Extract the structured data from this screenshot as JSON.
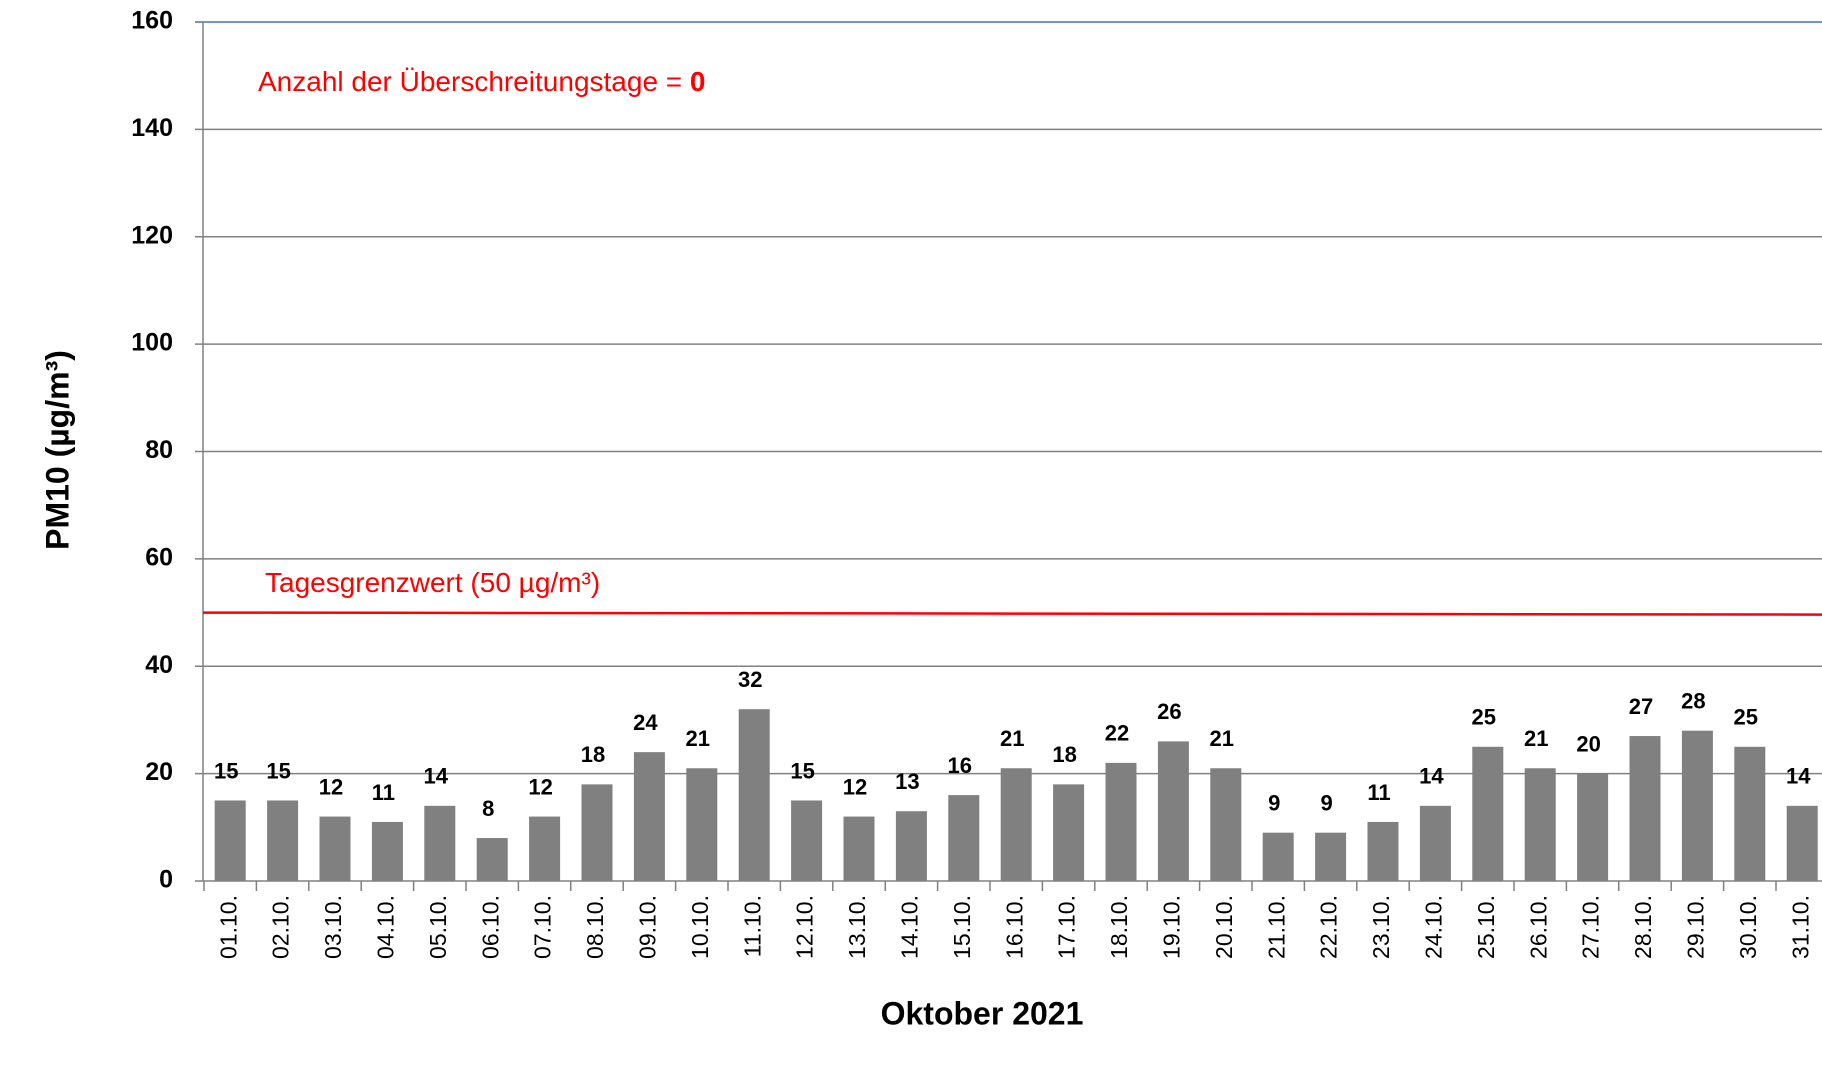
{
  "chart_data": {
    "type": "bar",
    "x_label": "Oktober 2021",
    "y_label": "PM10 (µg/m³)",
    "categories": [
      "01.10.",
      "02.10.",
      "03.10.",
      "04.10.",
      "05.10.",
      "06.10.",
      "07.10.",
      "08.10.",
      "09.10.",
      "10.10.",
      "11.10.",
      "12.10.",
      "13.10.",
      "14.10.",
      "15.10.",
      "16.10.",
      "17.10.",
      "18.10.",
      "19.10.",
      "20.10.",
      "21.10.",
      "22.10.",
      "23.10.",
      "24.10.",
      "25.10.",
      "26.10.",
      "27.10.",
      "28.10.",
      "29.10.",
      "30.10.",
      "31.10."
    ],
    "values": [
      15,
      15,
      12,
      11,
      14,
      8,
      12,
      18,
      24,
      21,
      32,
      15,
      12,
      13,
      16,
      21,
      18,
      22,
      26,
      21,
      9,
      9,
      11,
      14,
      25,
      21,
      20,
      27,
      28,
      25,
      14
    ],
    "color": "#808080",
    "ylim": [
      0,
      160
    ],
    "yticks": [
      0,
      20,
      40,
      60,
      80,
      100,
      120,
      140,
      160
    ],
    "grid": true,
    "threshold": {
      "value": 50,
      "label": "Tagesgrenzwert (50 µg/m³)",
      "color": "#ff0000"
    },
    "annotation": {
      "text": "Anzahl der Überschreitungstage = ",
      "value": 0
    }
  }
}
